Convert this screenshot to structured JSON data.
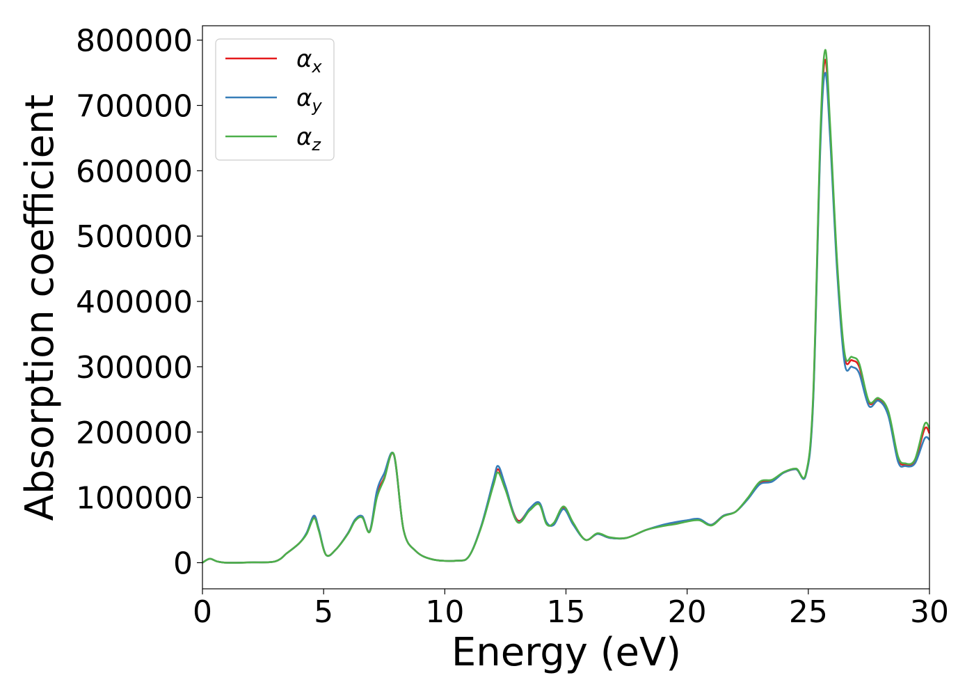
{
  "chart_data": {
    "type": "line",
    "xlabel": "Energy (eV)",
    "ylabel": "Absorption coefficient",
    "xlim": [
      0,
      30
    ],
    "ylim": [
      -40000,
      822000
    ],
    "x_ticks": [
      0,
      5,
      10,
      15,
      20,
      25,
      30
    ],
    "y_ticks": [
      0,
      100000,
      200000,
      300000,
      400000,
      500000,
      600000,
      700000,
      800000
    ],
    "grid": false,
    "legend_position": "upper-left",
    "series": [
      {
        "name": "αx",
        "symbol": "α",
        "subscript": "x",
        "color": "#e41a1c",
        "x": [
          0,
          0.3,
          0.6,
          1,
          2,
          3,
          3.5,
          4,
          4.3,
          4.6,
          4.8,
          5.1,
          5.5,
          6,
          6.3,
          6.6,
          6.9,
          7.2,
          7.5,
          7.9,
          8.3,
          8.8,
          9.5,
          10.5,
          11,
          11.5,
          12,
          12.2,
          12.5,
          13,
          13.5,
          13.9,
          14.2,
          14.5,
          14.9,
          15.3,
          15.8,
          16.3,
          16.8,
          17.5,
          18.3,
          19,
          19.5,
          20,
          20.5,
          21,
          21.5,
          22,
          22.5,
          23,
          23.5,
          24,
          24.5,
          24.9,
          25.2,
          25.5,
          25.7,
          25.9,
          26.2,
          26.5,
          26.8,
          27.1,
          27.5,
          27.9,
          28.3,
          28.7,
          29,
          29.4,
          29.8,
          30
        ],
        "values": [
          0,
          6000,
          2000,
          0,
          500,
          2000,
          15000,
          30000,
          45000,
          70000,
          50000,
          12000,
          20000,
          45000,
          65000,
          70000,
          48000,
          105000,
          130000,
          165000,
          50000,
          18000,
          5000,
          3000,
          10000,
          55000,
          120000,
          143000,
          115000,
          65000,
          82000,
          90000,
          60000,
          60000,
          84000,
          60000,
          35000,
          44000,
          38000,
          38000,
          50000,
          57000,
          60000,
          64000,
          66000,
          58000,
          72000,
          78000,
          98000,
          122000,
          126000,
          138000,
          143000,
          135000,
          250000,
          650000,
          770000,
          660000,
          450000,
          315000,
          310000,
          300000,
          245000,
          250000,
          230000,
          160000,
          150000,
          155000,
          205000,
          198000
        ]
      },
      {
        "name": "αy",
        "symbol": "α",
        "subscript": "y",
        "color": "#377eb8",
        "x": [
          0,
          0.3,
          0.6,
          1,
          2,
          3,
          3.5,
          4,
          4.3,
          4.6,
          4.8,
          5.1,
          5.5,
          6,
          6.3,
          6.6,
          6.9,
          7.2,
          7.5,
          7.9,
          8.3,
          8.8,
          9.5,
          10.5,
          11,
          11.5,
          12,
          12.2,
          12.5,
          13,
          13.5,
          13.9,
          14.2,
          14.5,
          14.9,
          15.3,
          15.8,
          16.3,
          16.8,
          17.5,
          18.3,
          19,
          19.5,
          20,
          20.5,
          21,
          21.5,
          22,
          22.5,
          23,
          23.5,
          24,
          24.5,
          24.9,
          25.2,
          25.5,
          25.7,
          25.9,
          26.2,
          26.5,
          26.8,
          27.1,
          27.5,
          27.9,
          28.3,
          28.7,
          29,
          29.4,
          29.8,
          30
        ],
        "values": [
          0,
          6000,
          2000,
          0,
          500,
          2000,
          15000,
          30000,
          46000,
          72000,
          52000,
          12000,
          20000,
          45000,
          66000,
          71000,
          48000,
          110000,
          137000,
          165000,
          50000,
          18000,
          5000,
          3000,
          10000,
          56000,
          125000,
          148000,
          118000,
          63000,
          83000,
          92000,
          62000,
          58000,
          82000,
          58000,
          35000,
          44000,
          38000,
          38000,
          50000,
          58000,
          62000,
          65000,
          67000,
          58000,
          72000,
          78000,
          97000,
          120000,
          124000,
          138000,
          143000,
          134000,
          245000,
          640000,
          750000,
          650000,
          440000,
          305000,
          300000,
          290000,
          240000,
          248000,
          225000,
          155000,
          148000,
          152000,
          190000,
          188000
        ]
      },
      {
        "name": "αz",
        "symbol": "α",
        "subscript": "z",
        "color": "#4daf4a",
        "x": [
          0,
          0.3,
          0.6,
          1,
          2,
          3,
          3.5,
          4,
          4.3,
          4.6,
          4.8,
          5.1,
          5.5,
          6,
          6.3,
          6.6,
          6.9,
          7.2,
          7.5,
          7.9,
          8.3,
          8.8,
          9.5,
          10.5,
          11,
          11.5,
          12,
          12.2,
          12.5,
          13,
          13.5,
          13.9,
          14.2,
          14.5,
          14.9,
          15.3,
          15.8,
          16.3,
          16.8,
          17.5,
          18.3,
          19,
          19.5,
          20,
          20.5,
          21,
          21.5,
          22,
          22.5,
          23,
          23.5,
          24,
          24.5,
          24.9,
          25.2,
          25.5,
          25.7,
          25.9,
          26.2,
          26.5,
          26.8,
          27.1,
          27.5,
          27.9,
          28.3,
          28.7,
          29,
          29.4,
          29.8,
          30
        ],
        "values": [
          0,
          6000,
          2000,
          0,
          500,
          2000,
          15000,
          30000,
          44000,
          68000,
          49000,
          12000,
          20000,
          44000,
          64000,
          69000,
          47000,
          100000,
          128000,
          166000,
          50000,
          18000,
          5000,
          3000,
          10000,
          54000,
          118000,
          138000,
          112000,
          62000,
          80000,
          89000,
          59000,
          61000,
          86000,
          61000,
          35000,
          45000,
          39000,
          38000,
          50000,
          56000,
          59000,
          63000,
          65000,
          57000,
          71000,
          78000,
          99000,
          124000,
          127000,
          139000,
          144000,
          136000,
          255000,
          660000,
          785000,
          670000,
          455000,
          320000,
          315000,
          305000,
          247000,
          252000,
          232000,
          163000,
          152000,
          158000,
          212000,
          205000
        ]
      }
    ]
  }
}
